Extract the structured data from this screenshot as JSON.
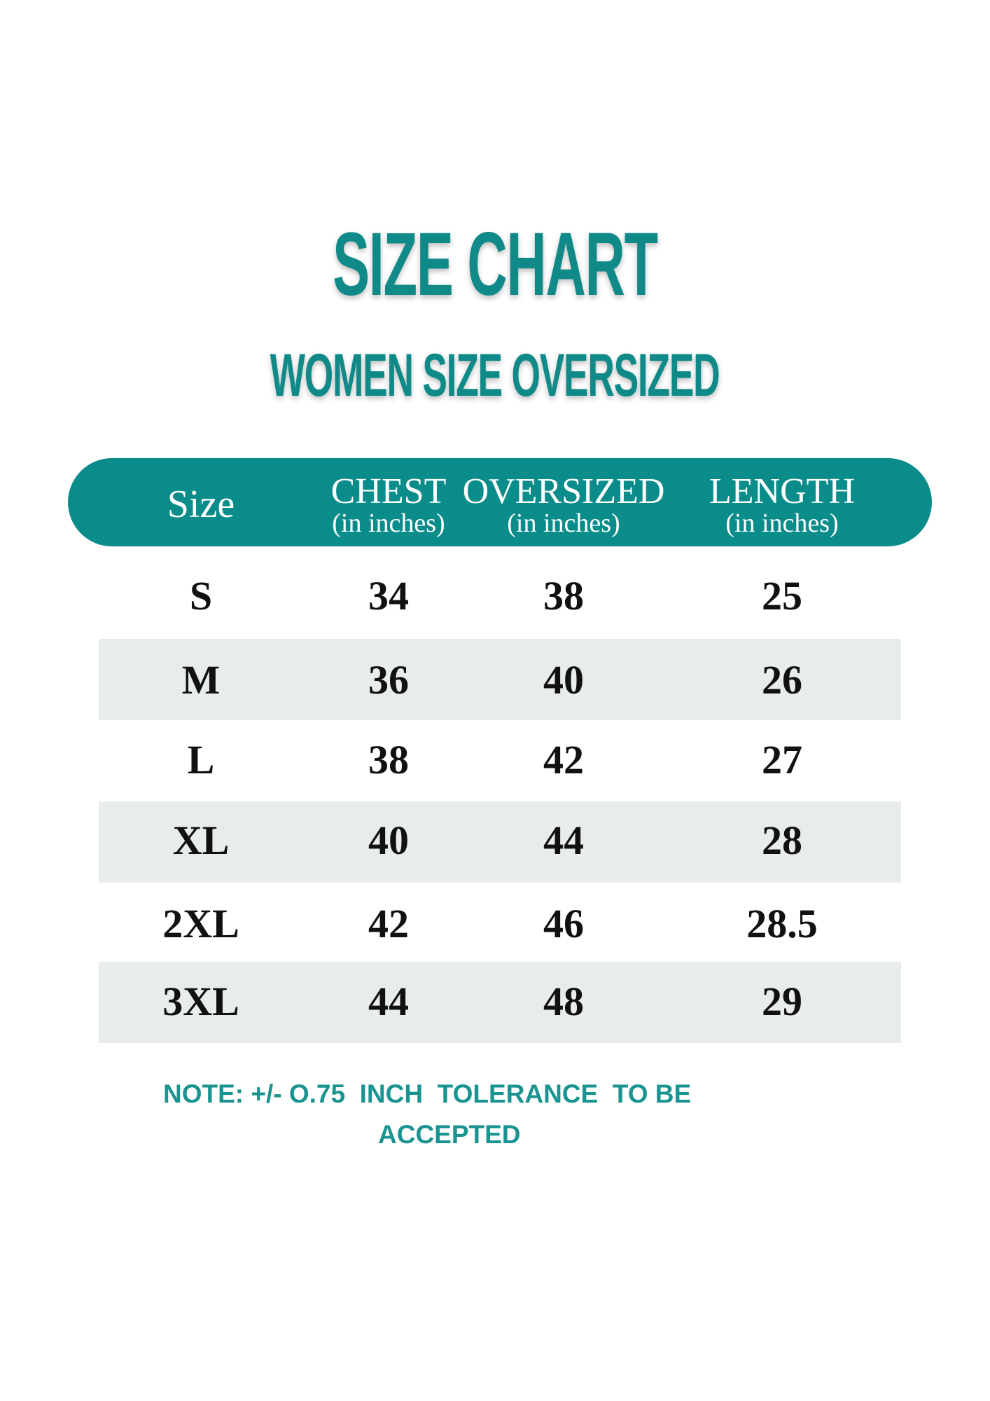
{
  "header": {
    "title": "SIZE CHART",
    "subtitle": "WOMEN  SIZE OVERSIZED"
  },
  "table": {
    "columns": [
      {
        "title": "Size"
      },
      {
        "title": "CHEST",
        "unit": "(in inches)"
      },
      {
        "title": "OVERSIZED",
        "unit": "(in inches)"
      },
      {
        "title": "LENGTH",
        "unit": "(in inches)"
      }
    ],
    "rows": [
      [
        "S",
        34,
        38,
        25
      ],
      [
        "M",
        36,
        40,
        26
      ],
      [
        "L",
        38,
        42,
        27
      ],
      [
        "XL",
        40,
        44,
        28
      ],
      [
        "2XL",
        42,
        46,
        28.5
      ],
      [
        "3XL",
        44,
        48,
        29
      ]
    ]
  },
  "note": [
    "NOTE: +/- O.75  INCH  TOLERANCE  TO BE",
    "ACCEPTED"
  ]
}
